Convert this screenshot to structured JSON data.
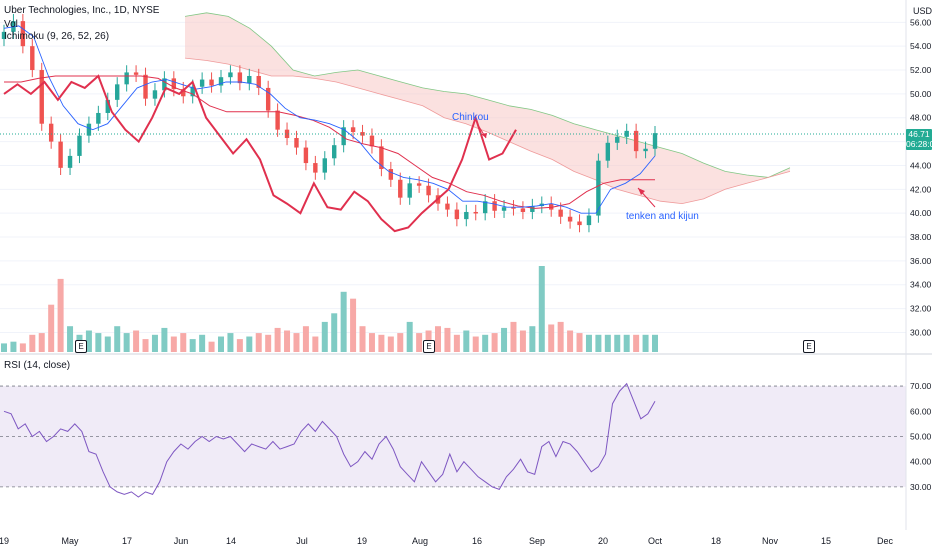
{
  "header": {
    "title": "Uber Technologies, Inc., 1D, NYSE",
    "volume_label": "Vol",
    "ichimoku_label": "Ichimoku (9, 26, 52, 26)"
  },
  "rsi_label": "RSI (14, close)",
  "currency_label": "USD",
  "price_tag": {
    "price": "46.71",
    "countdown": "06:28:0"
  },
  "annotations": {
    "chinkou": "Chinkou",
    "tenken_kijun": "tenken and kijun"
  },
  "earnings_badges": [
    "E",
    "E",
    "E"
  ],
  "colors": {
    "up": "#26a69a",
    "down": "#ef5350",
    "tenkan": "#2962ff",
    "kijun": "#e0304e",
    "chikou": "#e0304e",
    "cloud": "#f7c9c6",
    "rsi": "#7e57c2",
    "rsi_band": "#ede7f6"
  },
  "chart_data": [
    {
      "type": "candlestick",
      "title": "Uber Technologies, Inc., 1D, NYSE",
      "ylabel": "USD",
      "y_ticks": [
        "30.00",
        "32.00",
        "34.00",
        "36.00",
        "38.00",
        "40.00",
        "42.00",
        "44.00",
        "46.00",
        "48.00",
        "50.00",
        "52.00",
        "54.00",
        "56.00"
      ],
      "ylim": [
        29.2,
        57.2
      ],
      "x_ticks": [
        "19",
        "May",
        "17",
        "Jun",
        "14",
        "Jul",
        "19",
        "Aug",
        "16",
        "Sep",
        "20",
        "Oct",
        "18",
        "Nov",
        "15",
        "Dec"
      ],
      "close": [
        55.2,
        56.1,
        54.0,
        52.0,
        47.5,
        46.0,
        43.8,
        44.8,
        46.5,
        47.5,
        48.4,
        49.5,
        50.8,
        51.8,
        51.6,
        49.6,
        50.3,
        51.3,
        50.4,
        49.8,
        50.6,
        51.2,
        50.7,
        51.4,
        51.8,
        50.9,
        51.5,
        50.5,
        48.6,
        47.0,
        46.3,
        45.5,
        44.2,
        43.4,
        44.6,
        45.7,
        47.2,
        46.8,
        46.5,
        45.6,
        43.7,
        42.8,
        41.3,
        42.5,
        42.3,
        41.5,
        40.8,
        40.3,
        39.5,
        40.1,
        40.0,
        41.0,
        40.2,
        40.5,
        40.4,
        40.1,
        40.6,
        40.8,
        40.3,
        39.7,
        39.3,
        39.0,
        39.8,
        44.4,
        45.9,
        46.4,
        46.9,
        45.2,
        45.4,
        46.71
      ],
      "tenkan": [
        55.5,
        55.7,
        54.8,
        51.5,
        49.0,
        47.5,
        47.0,
        47.5,
        49.0,
        50.5,
        51.0,
        51.2,
        50.8,
        50.4,
        50.6,
        51.0,
        51.0,
        50.8,
        50.0,
        48.8,
        48.0,
        47.8,
        47.5,
        47.0,
        46.0,
        44.5,
        43.5,
        43.0,
        42.8,
        42.5,
        42.0,
        41.0,
        41.0,
        40.8,
        40.5,
        40.5,
        40.6,
        40.8,
        40.5,
        40.0,
        40.0,
        42.0,
        42.5,
        43.3,
        44.8
      ],
      "kijun": [
        51.0,
        51.0,
        51.3,
        51.5,
        51.5,
        51.5,
        51.5,
        51.5,
        51.5,
        51.3,
        50.5,
        50.0,
        49.0,
        48.5,
        48.5,
        48.5,
        48.5,
        48.2,
        47.8,
        47.2,
        46.2,
        45.8,
        45.5,
        45.0,
        44.0,
        43.0,
        42.5,
        41.8,
        41.5,
        41.0,
        40.6,
        40.4,
        40.5,
        40.8,
        41.8,
        42.5,
        42.8,
        42.8,
        42.8
      ],
      "chikou": [
        50.0,
        50.8,
        50.0,
        51.0,
        49.5,
        51.0,
        50.5,
        51.5,
        48.5,
        47.0,
        46.0,
        48.0,
        50.5,
        50.0,
        51.0,
        48.0,
        46.5,
        45.0,
        46.2,
        44.5,
        41.5,
        40.8,
        40.0,
        42.5,
        40.5,
        40.3,
        41.8,
        41.0,
        39.5,
        38.5,
        38.8,
        40.0,
        41.0,
        42.0,
        44.5,
        48.0,
        44.5,
        45.0,
        47.0
      ],
      "senkou_a": [
        56.5,
        56.8,
        56.5,
        55.5,
        54.0,
        52.0,
        51.5,
        51.8,
        52.0,
        51.5,
        51.0,
        50.5,
        50.2,
        50.0,
        49.5,
        49.0,
        48.7,
        48.2,
        47.5,
        47.0,
        46.5,
        46.0,
        45.5,
        45.0,
        44.2,
        43.5,
        43.2,
        43.0,
        43.8
      ],
      "senkou_b": [
        53.0,
        52.8,
        52.5,
        52.0,
        51.5,
        51.5,
        51.3,
        51.0,
        50.5,
        50.0,
        49.5,
        49.0,
        48.0,
        47.5,
        46.8,
        46.0,
        45.2,
        44.5,
        43.5,
        42.8,
        42.0,
        41.5,
        41.0,
        40.8,
        41.2,
        42.0,
        42.5,
        43.0,
        43.5
      ],
      "volume_relative": [
        0.1,
        0.12,
        0.1,
        0.2,
        0.22,
        0.55,
        0.85,
        0.3,
        0.2,
        0.25,
        0.22,
        0.18,
        0.3,
        0.22,
        0.25,
        0.15,
        0.2,
        0.28,
        0.18,
        0.22,
        0.15,
        0.2,
        0.12,
        0.18,
        0.22,
        0.15,
        0.18,
        0.22,
        0.2,
        0.28,
        0.25,
        0.22,
        0.3,
        0.18,
        0.35,
        0.45,
        0.7,
        0.62,
        0.3,
        0.22,
        0.2,
        0.18,
        0.22,
        0.35,
        0.22,
        0.25,
        0.3,
        0.28,
        0.2,
        0.25,
        0.18,
        0.2,
        0.22,
        0.28,
        0.35,
        0.25,
        0.3,
        1.0,
        0.32,
        0.35,
        0.25,
        0.22,
        0.2,
        0.2,
        0.2,
        0.2,
        0.2,
        0.2,
        0.2,
        0.2
      ]
    },
    {
      "type": "line",
      "title": "RSI (14, close)",
      "y_ticks": [
        "30.00",
        "40.00",
        "50.00",
        "60.00",
        "70.00"
      ],
      "ylim": [
        24,
        74
      ],
      "bands": [
        30,
        50,
        70
      ],
      "values": [
        60.0,
        59.0,
        53.0,
        55.0,
        50.0,
        52.0,
        48.0,
        50.0,
        53.0,
        52.0,
        55.0,
        52.0,
        44.0,
        43.0,
        36.0,
        30.0,
        28.0,
        27.0,
        28.0,
        26.0,
        28.0,
        27.0,
        32.0,
        40.0,
        44.0,
        47.0,
        45.0,
        48.0,
        50.0,
        48.0,
        50.0,
        49.0,
        50.0,
        47.0,
        44.0,
        47.0,
        46.0,
        45.0,
        48.0,
        45.0,
        46.0,
        47.0,
        52.0,
        55.0,
        52.0,
        56.0,
        53.0,
        50.0,
        43.0,
        38.0,
        40.0,
        44.0,
        41.0,
        47.0,
        50.0,
        45.0,
        38.0,
        35.0,
        32.0,
        40.0,
        36.0,
        32.0,
        35.0,
        43.0,
        36.0,
        40.0,
        37.0,
        34.0,
        32.0,
        30.0,
        29.0,
        34.0,
        37.0,
        41.0,
        36.0,
        35.0,
        46.0,
        48.0,
        42.0,
        48.0,
        47.0,
        44.0,
        40.0,
        36.0,
        38.0,
        43.0,
        63.0,
        68.0,
        71.0,
        64.0,
        57.0,
        59.0,
        64.0
      ]
    }
  ]
}
